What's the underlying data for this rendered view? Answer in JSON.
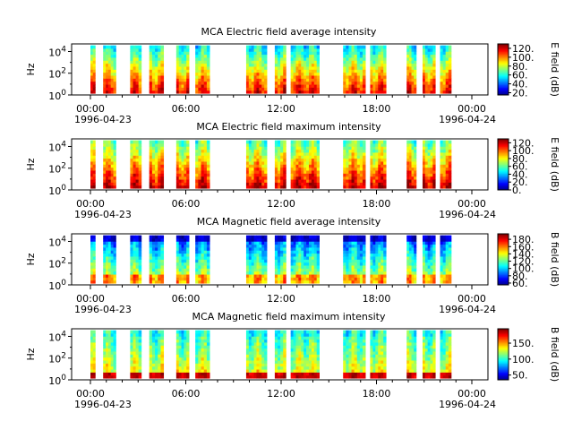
{
  "figure": {
    "time_range": [
      "1996-04-23 00:00",
      "1996-04-24 00:00"
    ],
    "x_tick_labels": [
      "00:00",
      "06:00",
      "12:00",
      "18:00",
      "00:00"
    ],
    "x_date_start": "1996-04-23",
    "x_date_end": "1996-04-24"
  },
  "chart_data": [
    {
      "type": "heatmap",
      "title": "MCA  Electric field average intensity",
      "ylabel": "Hz",
      "yscale": "log",
      "ylim": [
        1,
        50000
      ],
      "y_tick_labels": [
        {
          "base": "10",
          "exp": "0"
        },
        {
          "base": "10",
          "exp": "2"
        },
        {
          "base": "10",
          "exp": "4"
        }
      ],
      "colorbar": {
        "label": "E field (dB)",
        "ticks": [
          "20.",
          "40.",
          "60.",
          "80.",
          "100.",
          "120."
        ],
        "range": [
          15,
          130
        ]
      },
      "profile": "e_avg",
      "data_intervals_hours": [
        [
          0.0,
          0.3
        ],
        [
          0.8,
          1.6
        ],
        [
          2.5,
          3.2
        ],
        [
          3.7,
          4.6
        ],
        [
          5.4,
          6.2
        ],
        [
          6.6,
          7.5
        ],
        [
          9.8,
          11.1
        ],
        [
          11.6,
          12.3
        ],
        [
          12.6,
          14.4
        ],
        [
          15.9,
          17.3
        ],
        [
          17.6,
          18.6
        ],
        [
          19.9,
          20.5
        ],
        [
          20.9,
          21.7
        ],
        [
          22.0,
          22.7
        ]
      ]
    },
    {
      "type": "heatmap",
      "title": "MCA  Electric field maximum intensity",
      "ylabel": "Hz",
      "yscale": "log",
      "ylim": [
        1,
        50000
      ],
      "y_tick_labels": [
        {
          "base": "10",
          "exp": "0"
        },
        {
          "base": "10",
          "exp": "2"
        },
        {
          "base": "10",
          "exp": "4"
        }
      ],
      "colorbar": {
        "label": "E field (dB)",
        "ticks": [
          "0.",
          "20.",
          "40.",
          "60.",
          "80.",
          "100.",
          "120."
        ],
        "range": [
          0,
          130
        ]
      },
      "profile": "e_max",
      "data_intervals_hours": [
        [
          0.0,
          0.3
        ],
        [
          0.8,
          1.6
        ],
        [
          2.5,
          3.2
        ],
        [
          3.7,
          4.6
        ],
        [
          5.4,
          6.2
        ],
        [
          6.6,
          7.5
        ],
        [
          9.8,
          11.1
        ],
        [
          11.6,
          12.3
        ],
        [
          12.6,
          14.4
        ],
        [
          15.9,
          17.3
        ],
        [
          17.6,
          18.6
        ],
        [
          19.9,
          20.5
        ],
        [
          20.9,
          21.7
        ],
        [
          22.0,
          22.7
        ]
      ]
    },
    {
      "type": "heatmap",
      "title": "MCA  Magnetic field average intensity",
      "ylabel": "Hz",
      "yscale": "log",
      "ylim": [
        1,
        50000
      ],
      "y_tick_labels": [
        {
          "base": "10",
          "exp": "0"
        },
        {
          "base": "10",
          "exp": "2"
        },
        {
          "base": "10",
          "exp": "4"
        }
      ],
      "colorbar": {
        "label": "B field (dB)",
        "ticks": [
          "60.",
          "80.",
          "100.",
          "120.",
          "140.",
          "160.",
          "180."
        ],
        "range": [
          55,
          195
        ]
      },
      "profile": "b_avg",
      "data_intervals_hours": [
        [
          0.0,
          0.3
        ],
        [
          0.8,
          1.6
        ],
        [
          2.5,
          3.2
        ],
        [
          3.7,
          4.6
        ],
        [
          5.4,
          6.2
        ],
        [
          6.6,
          7.5
        ],
        [
          9.8,
          11.1
        ],
        [
          11.6,
          12.3
        ],
        [
          12.6,
          14.4
        ],
        [
          15.9,
          17.3
        ],
        [
          17.6,
          18.6
        ],
        [
          19.9,
          20.5
        ],
        [
          20.9,
          21.7
        ],
        [
          22.0,
          22.7
        ]
      ]
    },
    {
      "type": "heatmap",
      "title": "MCA  Magnetic field maximum intensity",
      "ylabel": "Hz",
      "yscale": "log",
      "ylim": [
        1,
        50000
      ],
      "y_tick_labels": [
        {
          "base": "10",
          "exp": "0"
        },
        {
          "base": "10",
          "exp": "2"
        },
        {
          "base": "10",
          "exp": "4"
        }
      ],
      "colorbar": {
        "label": "B field (dB)",
        "ticks": [
          "50.",
          "100.",
          "150."
        ],
        "range": [
          35,
          195
        ]
      },
      "profile": "b_max",
      "data_intervals_hours": [
        [
          0.0,
          0.3
        ],
        [
          0.8,
          1.6
        ],
        [
          2.5,
          3.2
        ],
        [
          3.7,
          4.6
        ],
        [
          5.4,
          6.2
        ],
        [
          6.6,
          7.5
        ],
        [
          9.8,
          11.1
        ],
        [
          11.6,
          12.3
        ],
        [
          12.6,
          14.4
        ],
        [
          15.9,
          17.3
        ],
        [
          17.6,
          18.6
        ],
        [
          19.9,
          20.5
        ],
        [
          20.9,
          21.7
        ],
        [
          22.0,
          22.7
        ]
      ]
    }
  ]
}
